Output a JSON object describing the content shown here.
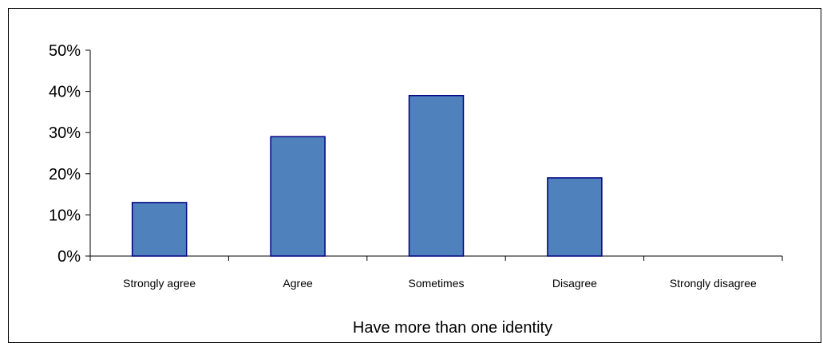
{
  "chart_data": {
    "type": "bar",
    "categories": [
      "Strongly agree",
      "Agree",
      "Sometimes",
      "Disagree",
      "Strongly disagree"
    ],
    "values": [
      13,
      29,
      39,
      19,
      0
    ],
    "xlabel": "Have more than one identity",
    "ylabel": "",
    "ylim": [
      0,
      50
    ],
    "yticks": [
      0,
      10,
      20,
      30,
      40,
      50
    ],
    "ytick_format": "%",
    "grid": false,
    "legend": "none",
    "colors": {
      "bar_fill": "#4F81BD",
      "bar_stroke": "#000080",
      "axis": "#000000"
    }
  }
}
